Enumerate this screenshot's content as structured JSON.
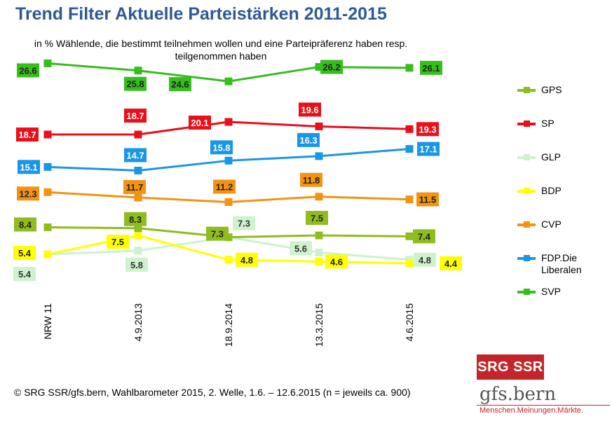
{
  "chart_data": {
    "type": "line",
    "title": "Trend Filter Aktuelle Parteistärken 2011-2015",
    "subtitle": "in % Wählende, die bestimmt teilnehmen wollen und eine Parteipräferenz haben resp. teilgenommen haben",
    "categories": [
      "NRW 11",
      "4.9.2013",
      "18.9.2014",
      "13.3.2015",
      "4.6.2015"
    ],
    "ylabel": "",
    "xlabel": "",
    "series": [
      {
        "name": "GPS",
        "color": "#8fbc1e",
        "values": [
          8.4,
          8.3,
          7.3,
          7.5,
          7.4
        ]
      },
      {
        "name": "SP",
        "color": "#e8101b",
        "values": [
          18.7,
          18.7,
          20.1,
          19.6,
          19.3
        ]
      },
      {
        "name": "GLP",
        "color": "#cdf2cd",
        "values": [
          5.4,
          5.8,
          7.3,
          5.6,
          4.8
        ]
      },
      {
        "name": "BDP",
        "color": "#ffff00",
        "values": [
          5.4,
          7.5,
          4.8,
          4.6,
          4.4
        ]
      },
      {
        "name": "CVP",
        "color": "#f39313",
        "values": [
          12.3,
          11.7,
          11.2,
          11.8,
          11.5
        ]
      },
      {
        "name": "FDP.Die Liberalen",
        "color": "#1a96e6",
        "values": [
          15.1,
          14.7,
          15.8,
          16.3,
          17.1
        ]
      },
      {
        "name": "SVP",
        "color": "#35be1c",
        "values": [
          26.6,
          25.8,
          24.6,
          26.2,
          26.1
        ]
      }
    ]
  },
  "footer": "© SRG SSR/gfs.bern, Wahlbarometer 2015, 2. Welle, 1.6. – 12.6.2015 (n = jeweils ca. 900)",
  "logos": {
    "srg": "SRG SSR",
    "gfs_name": "gfs.bern",
    "gfs_tagline": "Menschen.Meinungen.Märkte."
  }
}
